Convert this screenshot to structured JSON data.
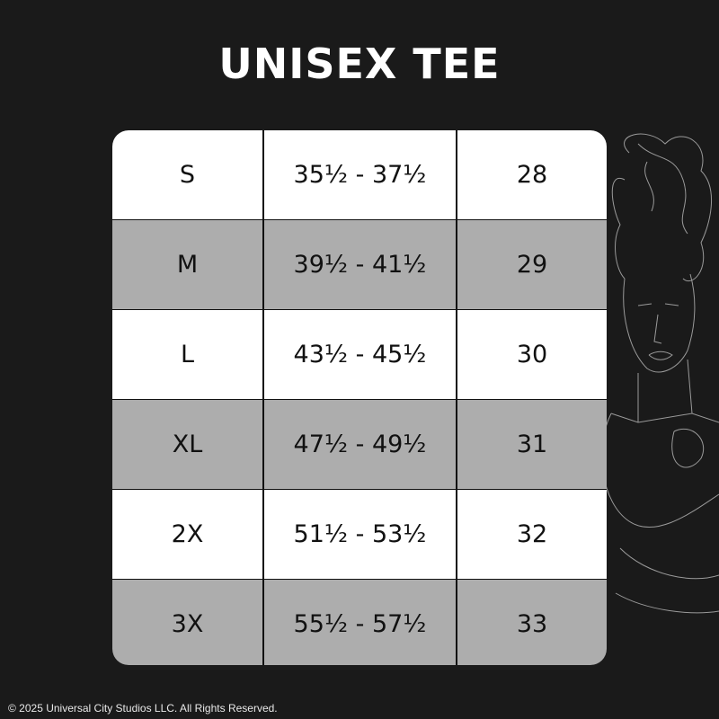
{
  "title": "UNISEX TEE",
  "colors": {
    "background": "#1a1a1a",
    "row_light": "#ffffff",
    "row_dark": "#adadad"
  },
  "illustration": "line-art-bride-of-frankenstein",
  "rows": [
    {
      "size": "S",
      "chest": "35½ - 37½",
      "length": "28"
    },
    {
      "size": "M",
      "chest": "39½ - 41½",
      "length": "29"
    },
    {
      "size": "L",
      "chest": "43½ - 45½",
      "length": "30"
    },
    {
      "size": "XL",
      "chest": "47½ - 49½",
      "length": "31"
    },
    {
      "size": "2X",
      "chest": "51½ - 53½",
      "length": "32"
    },
    {
      "size": "3X",
      "chest": "55½ - 57½",
      "length": "33"
    }
  ],
  "footer": "© 2025 Universal City Studios LLC. All Rights Reserved."
}
